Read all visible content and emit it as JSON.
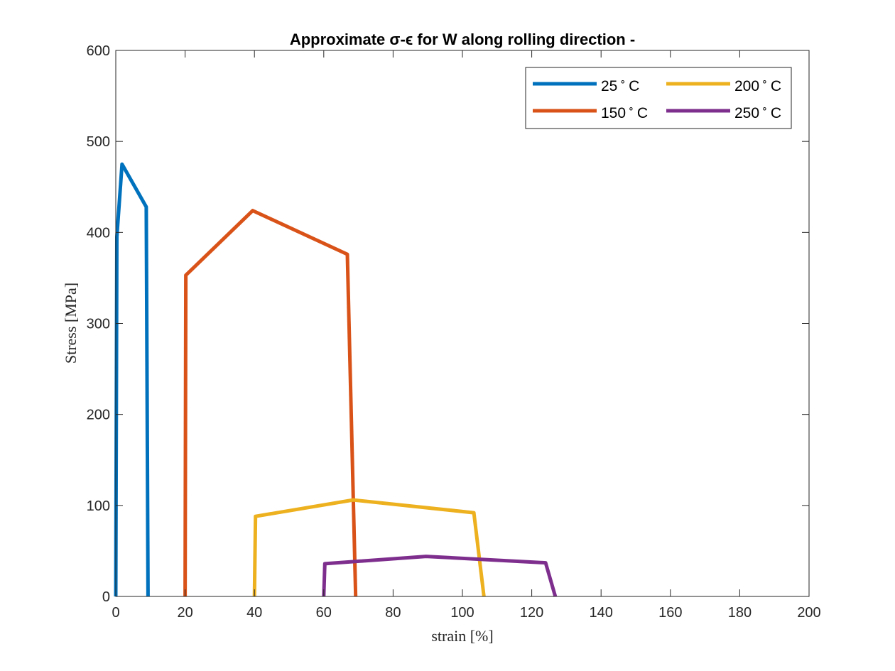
{
  "chart_data": {
    "type": "line",
    "title": "Approximate σ-ϵ for W along rolling direction -",
    "xlabel": "strain [%]",
    "ylabel": "Stress [MPa]",
    "xlim": [
      0,
      200
    ],
    "ylim": [
      0,
      600
    ],
    "xticks": [
      "0",
      "20",
      "40",
      "60",
      "80",
      "100",
      "120",
      "140",
      "160",
      "180",
      "200"
    ],
    "yticks": [
      "0",
      "100",
      "200",
      "300",
      "400",
      "500",
      "600"
    ],
    "grid": false,
    "legend_position": "top-right",
    "series": [
      {
        "name": "25",
        "unit": "C",
        "color": "#0072BD",
        "x": [
          0,
          0.3,
          1.8,
          8.8,
          9.3
        ],
        "y": [
          0,
          395,
          475,
          428,
          0
        ]
      },
      {
        "name": "150",
        "unit": "C",
        "color": "#D95319",
        "x": [
          20,
          20.2,
          39.5,
          66.8,
          69.2
        ],
        "y": [
          0,
          353,
          424,
          376,
          0
        ]
      },
      {
        "name": "200",
        "unit": "C",
        "color": "#EDB120",
        "x": [
          40,
          40.3,
          68.5,
          103.3,
          106.2
        ],
        "y": [
          0,
          88,
          106,
          92,
          0
        ]
      },
      {
        "name": "250",
        "unit": "C",
        "color": "#7E2F8E",
        "x": [
          60,
          60.3,
          89.5,
          124.0,
          126.8
        ],
        "y": [
          0,
          36,
          44,
          37,
          0
        ]
      }
    ]
  }
}
